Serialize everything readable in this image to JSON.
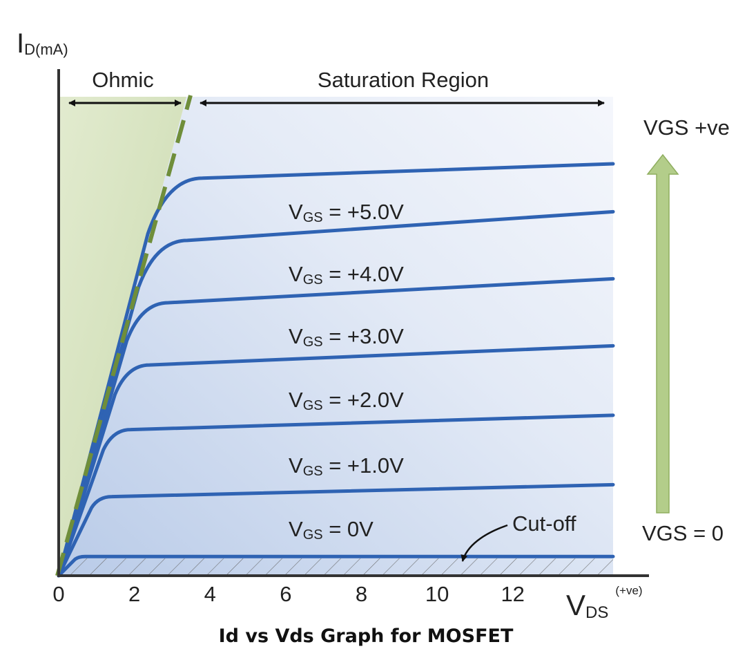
{
  "chart_data": {
    "type": "line",
    "title": "",
    "caption": "Id vs Vds Graph for MOSFET",
    "ylabel": {
      "main": "I",
      "sub": "D(mA)"
    },
    "xlabel": {
      "main": "V",
      "sub": "DS",
      "sup": "(+ve)"
    },
    "x_ticks": [
      0,
      2,
      4,
      6,
      8,
      10,
      12
    ],
    "xlim": [
      0,
      15.6
    ],
    "regions": {
      "ohmic": "Ohmic",
      "saturation": "Saturation Region",
      "cutoff": "Cut-off"
    },
    "gate_arrow": {
      "top_label": "VGS +ve",
      "bottom_label": "VGS = 0"
    },
    "series": [
      {
        "label": "VGS = 0V",
        "knee_vds": 0.7,
        "y_rel": 0.04,
        "y_end": 0.04
      },
      {
        "label": "VGS = +1.0V",
        "knee_vds": 1.4,
        "y_rel": 0.165,
        "y_end": 0.19
      },
      {
        "label": "VGS = +2.0V",
        "knee_vds": 1.9,
        "y_rel": 0.305,
        "y_end": 0.335
      },
      {
        "label": "VGS = +3.0V",
        "knee_vds": 2.4,
        "y_rel": 0.44,
        "y_end": 0.48
      },
      {
        "label": "VGS = +4.0V",
        "knee_vds": 2.9,
        "y_rel": 0.57,
        "y_end": 0.62
      },
      {
        "label": "VGS = +5.0V",
        "knee_vds": 3.4,
        "y_rel": 0.7,
        "y_end": 0.76
      },
      {
        "label": "",
        "knee_vds": 3.8,
        "y_rel": 0.83,
        "y_end": 0.86
      }
    ],
    "colors": {
      "curve": "#2f63b3",
      "ohmic_fill": "#d6e3bf",
      "pinchoff_line": "#6f8e3a",
      "gate_arrow": "#a8c47a",
      "axis": "#333333"
    }
  }
}
